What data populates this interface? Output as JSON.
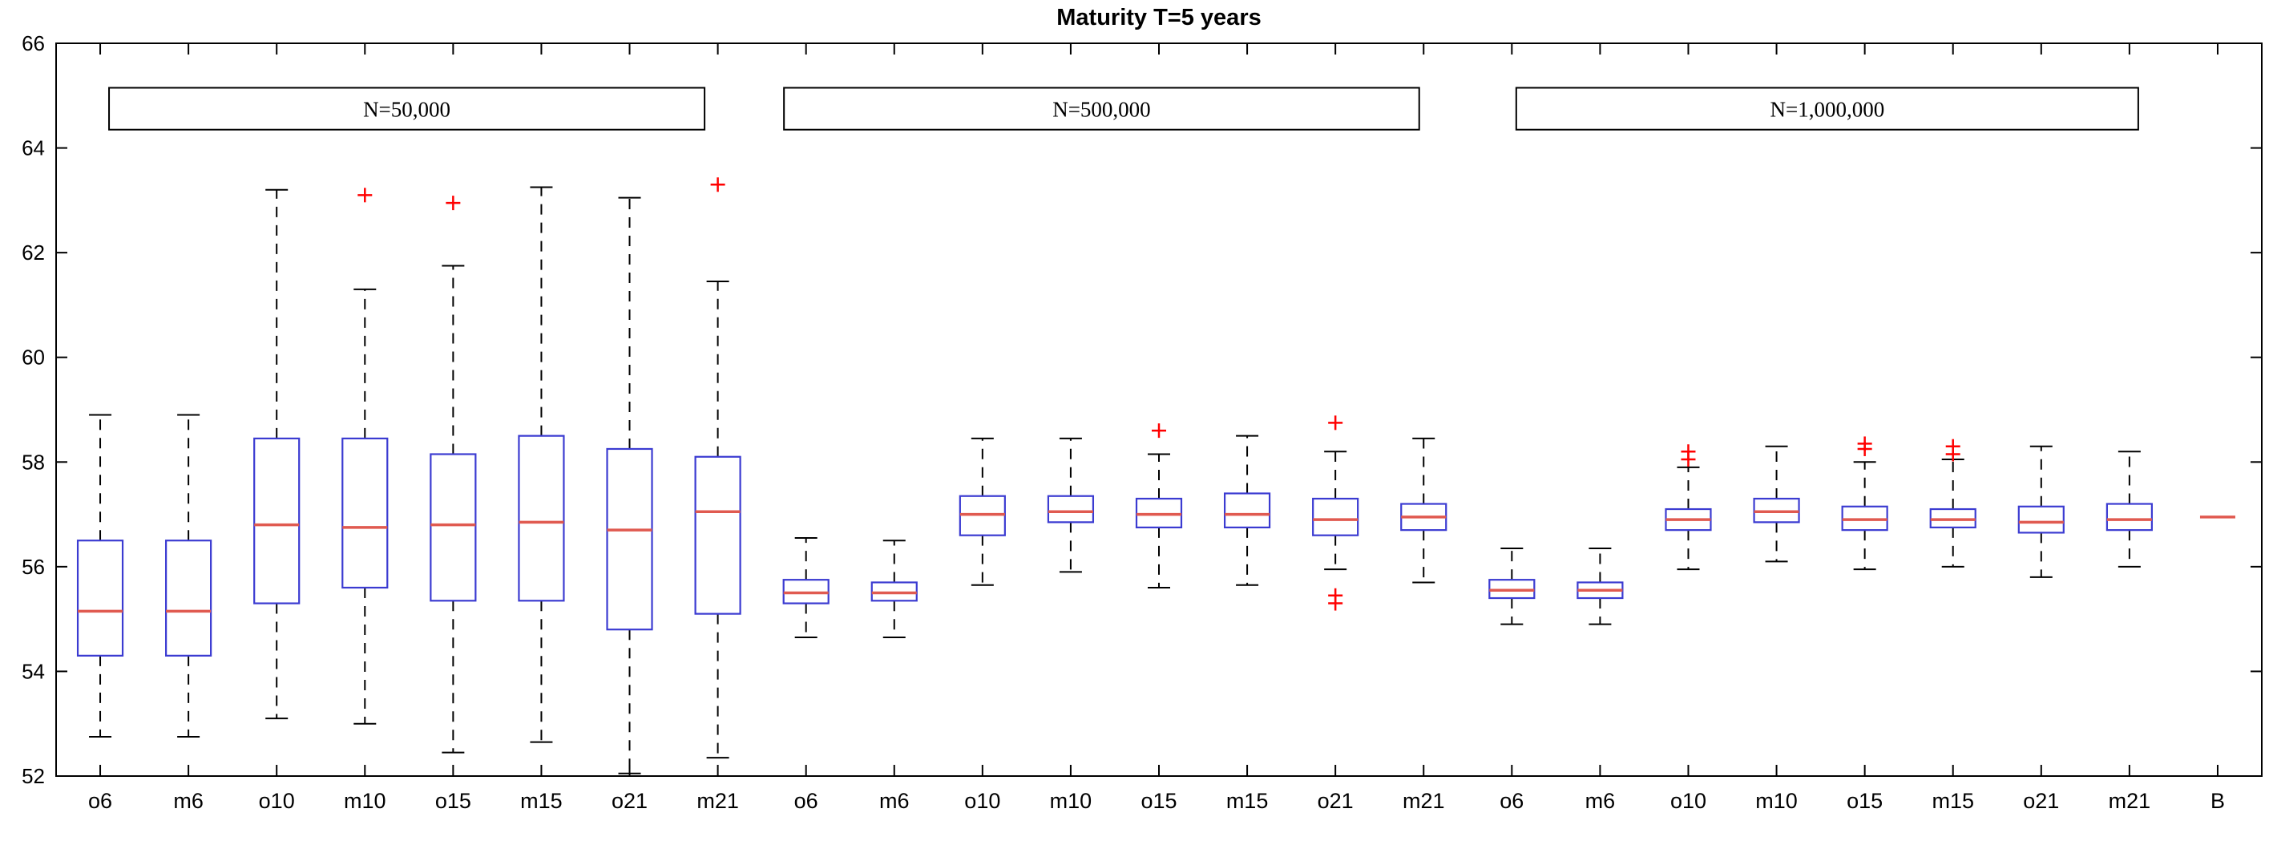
{
  "chart_data": {
    "type": "boxplot",
    "title": "Maturity T=5 years",
    "xlabel": "",
    "ylabel": "",
    "ylim": [
      52,
      66
    ],
    "yticks": [
      52,
      54,
      56,
      58,
      60,
      62,
      64,
      66
    ],
    "grid": false,
    "legend": "none",
    "group_boxes": [
      {
        "label": "N=50,000",
        "x0": 1.1,
        "x1": 7.85,
        "y_top": 65.15,
        "y_bottom": 64.35
      },
      {
        "label": "N=500,000",
        "x0": 8.75,
        "x1": 15.95,
        "y_top": 65.15,
        "y_bottom": 64.35
      },
      {
        "label": "N=1,000,000",
        "x0": 17.05,
        "x1": 24.1,
        "y_top": 65.15,
        "y_bottom": 64.35
      }
    ],
    "colors": {
      "box": "#3b3bd1",
      "median": "#e05a50",
      "whisker": "#000000",
      "cap": "#000000",
      "flier": "#ff0000",
      "axis": "#000000",
      "annotation_box": "#000000"
    },
    "boxes": [
      {
        "label": "o6",
        "group": 0,
        "whislo": 52.75,
        "q1": 54.3,
        "med": 55.15,
        "q3": 56.5,
        "whishi": 58.9,
        "fliers": []
      },
      {
        "label": "m6",
        "group": 0,
        "whislo": 52.75,
        "q1": 54.3,
        "med": 55.15,
        "q3": 56.5,
        "whishi": 58.9,
        "fliers": []
      },
      {
        "label": "o10",
        "group": 0,
        "whislo": 53.1,
        "q1": 55.3,
        "med": 56.8,
        "q3": 58.45,
        "whishi": 63.2,
        "fliers": []
      },
      {
        "label": "m10",
        "group": 0,
        "whislo": 53.0,
        "q1": 55.6,
        "med": 56.75,
        "q3": 58.45,
        "whishi": 61.3,
        "fliers": [
          63.1
        ]
      },
      {
        "label": "o15",
        "group": 0,
        "whislo": 52.45,
        "q1": 55.35,
        "med": 56.8,
        "q3": 58.15,
        "whishi": 61.75,
        "fliers": [
          62.95
        ]
      },
      {
        "label": "m15",
        "group": 0,
        "whislo": 52.65,
        "q1": 55.35,
        "med": 56.85,
        "q3": 58.5,
        "whishi": 63.25,
        "fliers": []
      },
      {
        "label": "o21",
        "group": 0,
        "whislo": 52.05,
        "q1": 54.8,
        "med": 56.7,
        "q3": 58.25,
        "whishi": 63.05,
        "fliers": []
      },
      {
        "label": "m21",
        "group": 0,
        "whislo": 52.35,
        "q1": 55.1,
        "med": 57.05,
        "q3": 58.1,
        "whishi": 61.45,
        "fliers": [
          63.3
        ]
      },
      {
        "label": "o6",
        "group": 1,
        "whislo": 54.65,
        "q1": 55.3,
        "med": 55.5,
        "q3": 55.75,
        "whishi": 56.55,
        "fliers": []
      },
      {
        "label": "m6",
        "group": 1,
        "whislo": 54.65,
        "q1": 55.35,
        "med": 55.5,
        "q3": 55.7,
        "whishi": 56.5,
        "fliers": []
      },
      {
        "label": "o10",
        "group": 1,
        "whislo": 55.65,
        "q1": 56.6,
        "med": 57.0,
        "q3": 57.35,
        "whishi": 58.45,
        "fliers": []
      },
      {
        "label": "m10",
        "group": 1,
        "whislo": 55.9,
        "q1": 56.85,
        "med": 57.05,
        "q3": 57.35,
        "whishi": 58.45,
        "fliers": []
      },
      {
        "label": "o15",
        "group": 1,
        "whislo": 55.6,
        "q1": 56.75,
        "med": 57.0,
        "q3": 57.3,
        "whishi": 58.15,
        "fliers": [
          58.6
        ]
      },
      {
        "label": "m15",
        "group": 1,
        "whislo": 55.65,
        "q1": 56.75,
        "med": 57.0,
        "q3": 57.4,
        "whishi": 58.5,
        "fliers": []
      },
      {
        "label": "o21",
        "group": 1,
        "whislo": 55.95,
        "q1": 56.6,
        "med": 56.9,
        "q3": 57.3,
        "whishi": 58.2,
        "fliers": [
          58.75,
          55.45,
          55.3
        ]
      },
      {
        "label": "m21",
        "group": 1,
        "whislo": 55.7,
        "q1": 56.7,
        "med": 56.95,
        "q3": 57.2,
        "whishi": 58.45,
        "fliers": []
      },
      {
        "label": "o6",
        "group": 2,
        "whislo": 54.9,
        "q1": 55.4,
        "med": 55.55,
        "q3": 55.75,
        "whishi": 56.35,
        "fliers": []
      },
      {
        "label": "m6",
        "group": 2,
        "whislo": 54.9,
        "q1": 55.4,
        "med": 55.55,
        "q3": 55.7,
        "whishi": 56.35,
        "fliers": []
      },
      {
        "label": "o10",
        "group": 2,
        "whislo": 55.95,
        "q1": 56.7,
        "med": 56.9,
        "q3": 57.1,
        "whishi": 57.9,
        "fliers": [
          58.05,
          58.2
        ]
      },
      {
        "label": "m10",
        "group": 2,
        "whislo": 56.1,
        "q1": 56.85,
        "med": 57.05,
        "q3": 57.3,
        "whishi": 58.3,
        "fliers": []
      },
      {
        "label": "o15",
        "group": 2,
        "whislo": 55.95,
        "q1": 56.7,
        "med": 56.9,
        "q3": 57.15,
        "whishi": 58.0,
        "fliers": [
          58.25,
          58.35
        ]
      },
      {
        "label": "m15",
        "group": 2,
        "whislo": 56.0,
        "q1": 56.75,
        "med": 56.9,
        "q3": 57.1,
        "whishi": 58.05,
        "fliers": [
          58.15,
          58.3
        ]
      },
      {
        "label": "o21",
        "group": 2,
        "whislo": 55.8,
        "q1": 56.65,
        "med": 56.85,
        "q3": 57.15,
        "whishi": 58.3,
        "fliers": []
      },
      {
        "label": "m21",
        "group": 2,
        "whislo": 56.0,
        "q1": 56.7,
        "med": 56.9,
        "q3": 57.2,
        "whishi": 58.2,
        "fliers": []
      },
      {
        "label": "B",
        "group": -1,
        "med": 56.95,
        "benchmark": true,
        "fliers": []
      }
    ]
  }
}
